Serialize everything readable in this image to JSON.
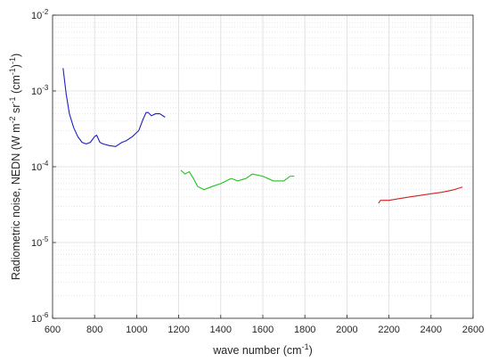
{
  "chart_data": {
    "type": "line",
    "xlabel": [
      "wave number (cm",
      "-1",
      ")"
    ],
    "ylabel": [
      "Radiometric noise, NEDN (W m",
      "-2",
      " sr",
      "-1",
      " (cm",
      "-1",
      ")",
      "-1",
      ")"
    ],
    "xlim": [
      600,
      2600
    ],
    "xticks": [
      600,
      800,
      1000,
      1200,
      1400,
      1600,
      1800,
      2000,
      2200,
      2400,
      2600
    ],
    "ylim": [
      1e-06,
      0.01
    ],
    "yticks": [
      {
        "value": 1e-06,
        "label": "10",
        "exponent": "-6"
      },
      {
        "value": 1e-05,
        "label": "10",
        "exponent": "-5"
      },
      {
        "value": 0.0001,
        "label": "10",
        "exponent": "-4"
      },
      {
        "value": 0.001,
        "label": "10",
        "exponent": "-3"
      },
      {
        "value": 0.01,
        "label": "10",
        "exponent": "-2"
      }
    ],
    "log_y": true,
    "grid": true,
    "minor_grid": true,
    "series": [
      {
        "color": "#1f1fc8",
        "x": [
          650,
          665,
          680,
          700,
          720,
          740,
          760,
          780,
          800,
          810,
          825,
          840,
          870,
          900,
          930,
          950,
          980,
          1010,
          1030,
          1045,
          1055,
          1070,
          1090,
          1110,
          1135
        ],
        "values": [
          0.002,
          0.0009,
          0.0005,
          0.00033,
          0.00025,
          0.00021,
          0.0002,
          0.00021,
          0.00025,
          0.00026,
          0.00021,
          0.0002,
          0.00019,
          0.000185,
          0.00021,
          0.00022,
          0.00025,
          0.0003,
          0.00042,
          0.00052,
          0.00052,
          0.00047,
          0.0005,
          0.0005,
          0.00045
        ]
      },
      {
        "color": "#22c022",
        "x": [
          1210,
          1230,
          1250,
          1270,
          1290,
          1320,
          1360,
          1400,
          1450,
          1480,
          1520,
          1550,
          1600,
          1650,
          1700,
          1730,
          1750
        ],
        "values": [
          9e-05,
          8e-05,
          8.6e-05,
          7e-05,
          5.5e-05,
          5e-05,
          5.5e-05,
          6e-05,
          7e-05,
          6.5e-05,
          7e-05,
          8e-05,
          7.5e-05,
          6.5e-05,
          6.5e-05,
          7.5e-05,
          7.5e-05
        ]
      },
      {
        "color": "#d42020",
        "x": [
          2150,
          2160,
          2200,
          2250,
          2300,
          2350,
          2400,
          2450,
          2500,
          2550
        ],
        "values": [
          3.3e-05,
          3.6e-05,
          3.6e-05,
          3.8e-05,
          4e-05,
          4.2e-05,
          4.4e-05,
          4.6e-05,
          4.9e-05,
          5.4e-05
        ]
      }
    ]
  }
}
